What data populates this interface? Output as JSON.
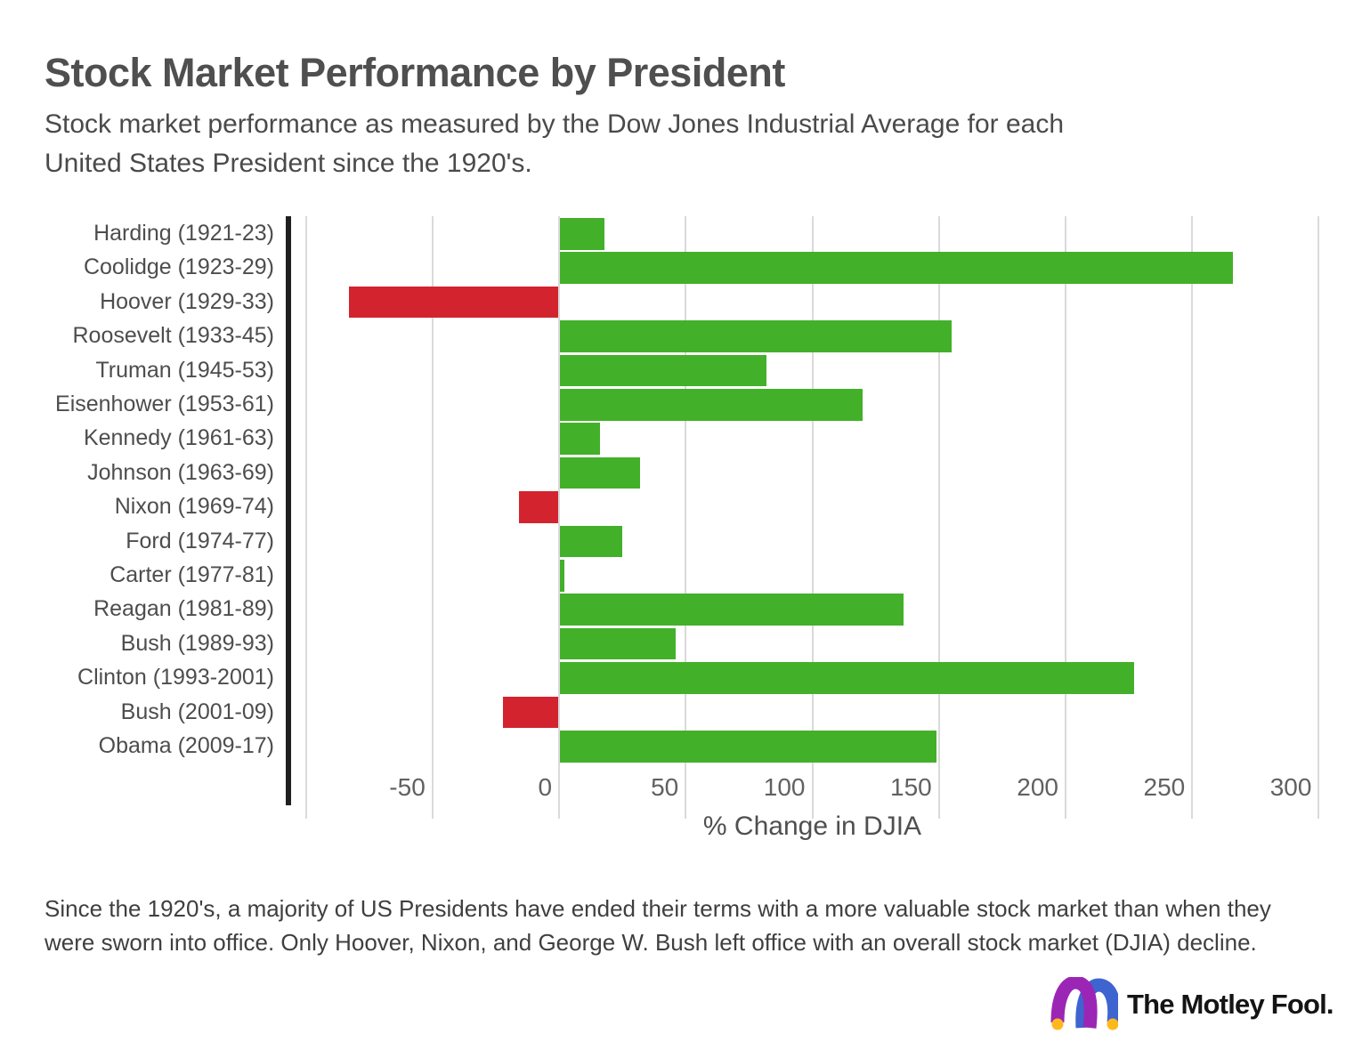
{
  "header": {
    "title": "Stock Market Performance by President",
    "subtitle_line1": "Stock market performance as measured by the Dow Jones Industrial Average for each",
    "subtitle_line2": "United States President since the 1920's."
  },
  "chart_data": {
    "type": "bar",
    "orientation": "horizontal",
    "title": "Stock Market Performance by President",
    "xlabel": "% Change in DJIA",
    "categories": [
      "Harding (1921-23)",
      "Coolidge (1923-29)",
      "Hoover (1929-33)",
      "Roosevelt (1933-45)",
      "Truman (1945-53)",
      "Eisenhower (1953-61)",
      "Kennedy (1961-63)",
      "Johnson (1963-69)",
      "Nixon (1969-74)",
      "Ford (1974-77)",
      "Carter (1977-81)",
      "Reagan (1981-89)",
      "Bush (1989-93)",
      "Clinton (1993-2001)",
      "Bush (2001-09)",
      "Obama (2009-17)"
    ],
    "values": [
      18,
      266,
      -83,
      155,
      82,
      120,
      16,
      32,
      -16,
      25,
      2,
      136,
      46,
      227,
      -22,
      149
    ],
    "xticks": [
      -50,
      0,
      50,
      100,
      150,
      200,
      250,
      300
    ],
    "xlim": [
      -103,
      303
    ],
    "grid": true,
    "legend": "none",
    "positive_color": "#43b02a",
    "negative_color": "#d2232e",
    "gridline_color": "#dadada"
  },
  "footer": {
    "line1": "Since the 1920's, a majority of US Presidents have ended their terms with a more valuable stock market than when they",
    "line2": "were sworn into office. Only Hoover, Nixon, and George W. Bush left office with an overall stock market (DJIA) decline."
  },
  "logo": {
    "text": "The Motley Fool.",
    "cap_purple": "#9b26b6",
    "cap_blue": "#3e64d0",
    "cap_gold": "#ffb81c"
  }
}
